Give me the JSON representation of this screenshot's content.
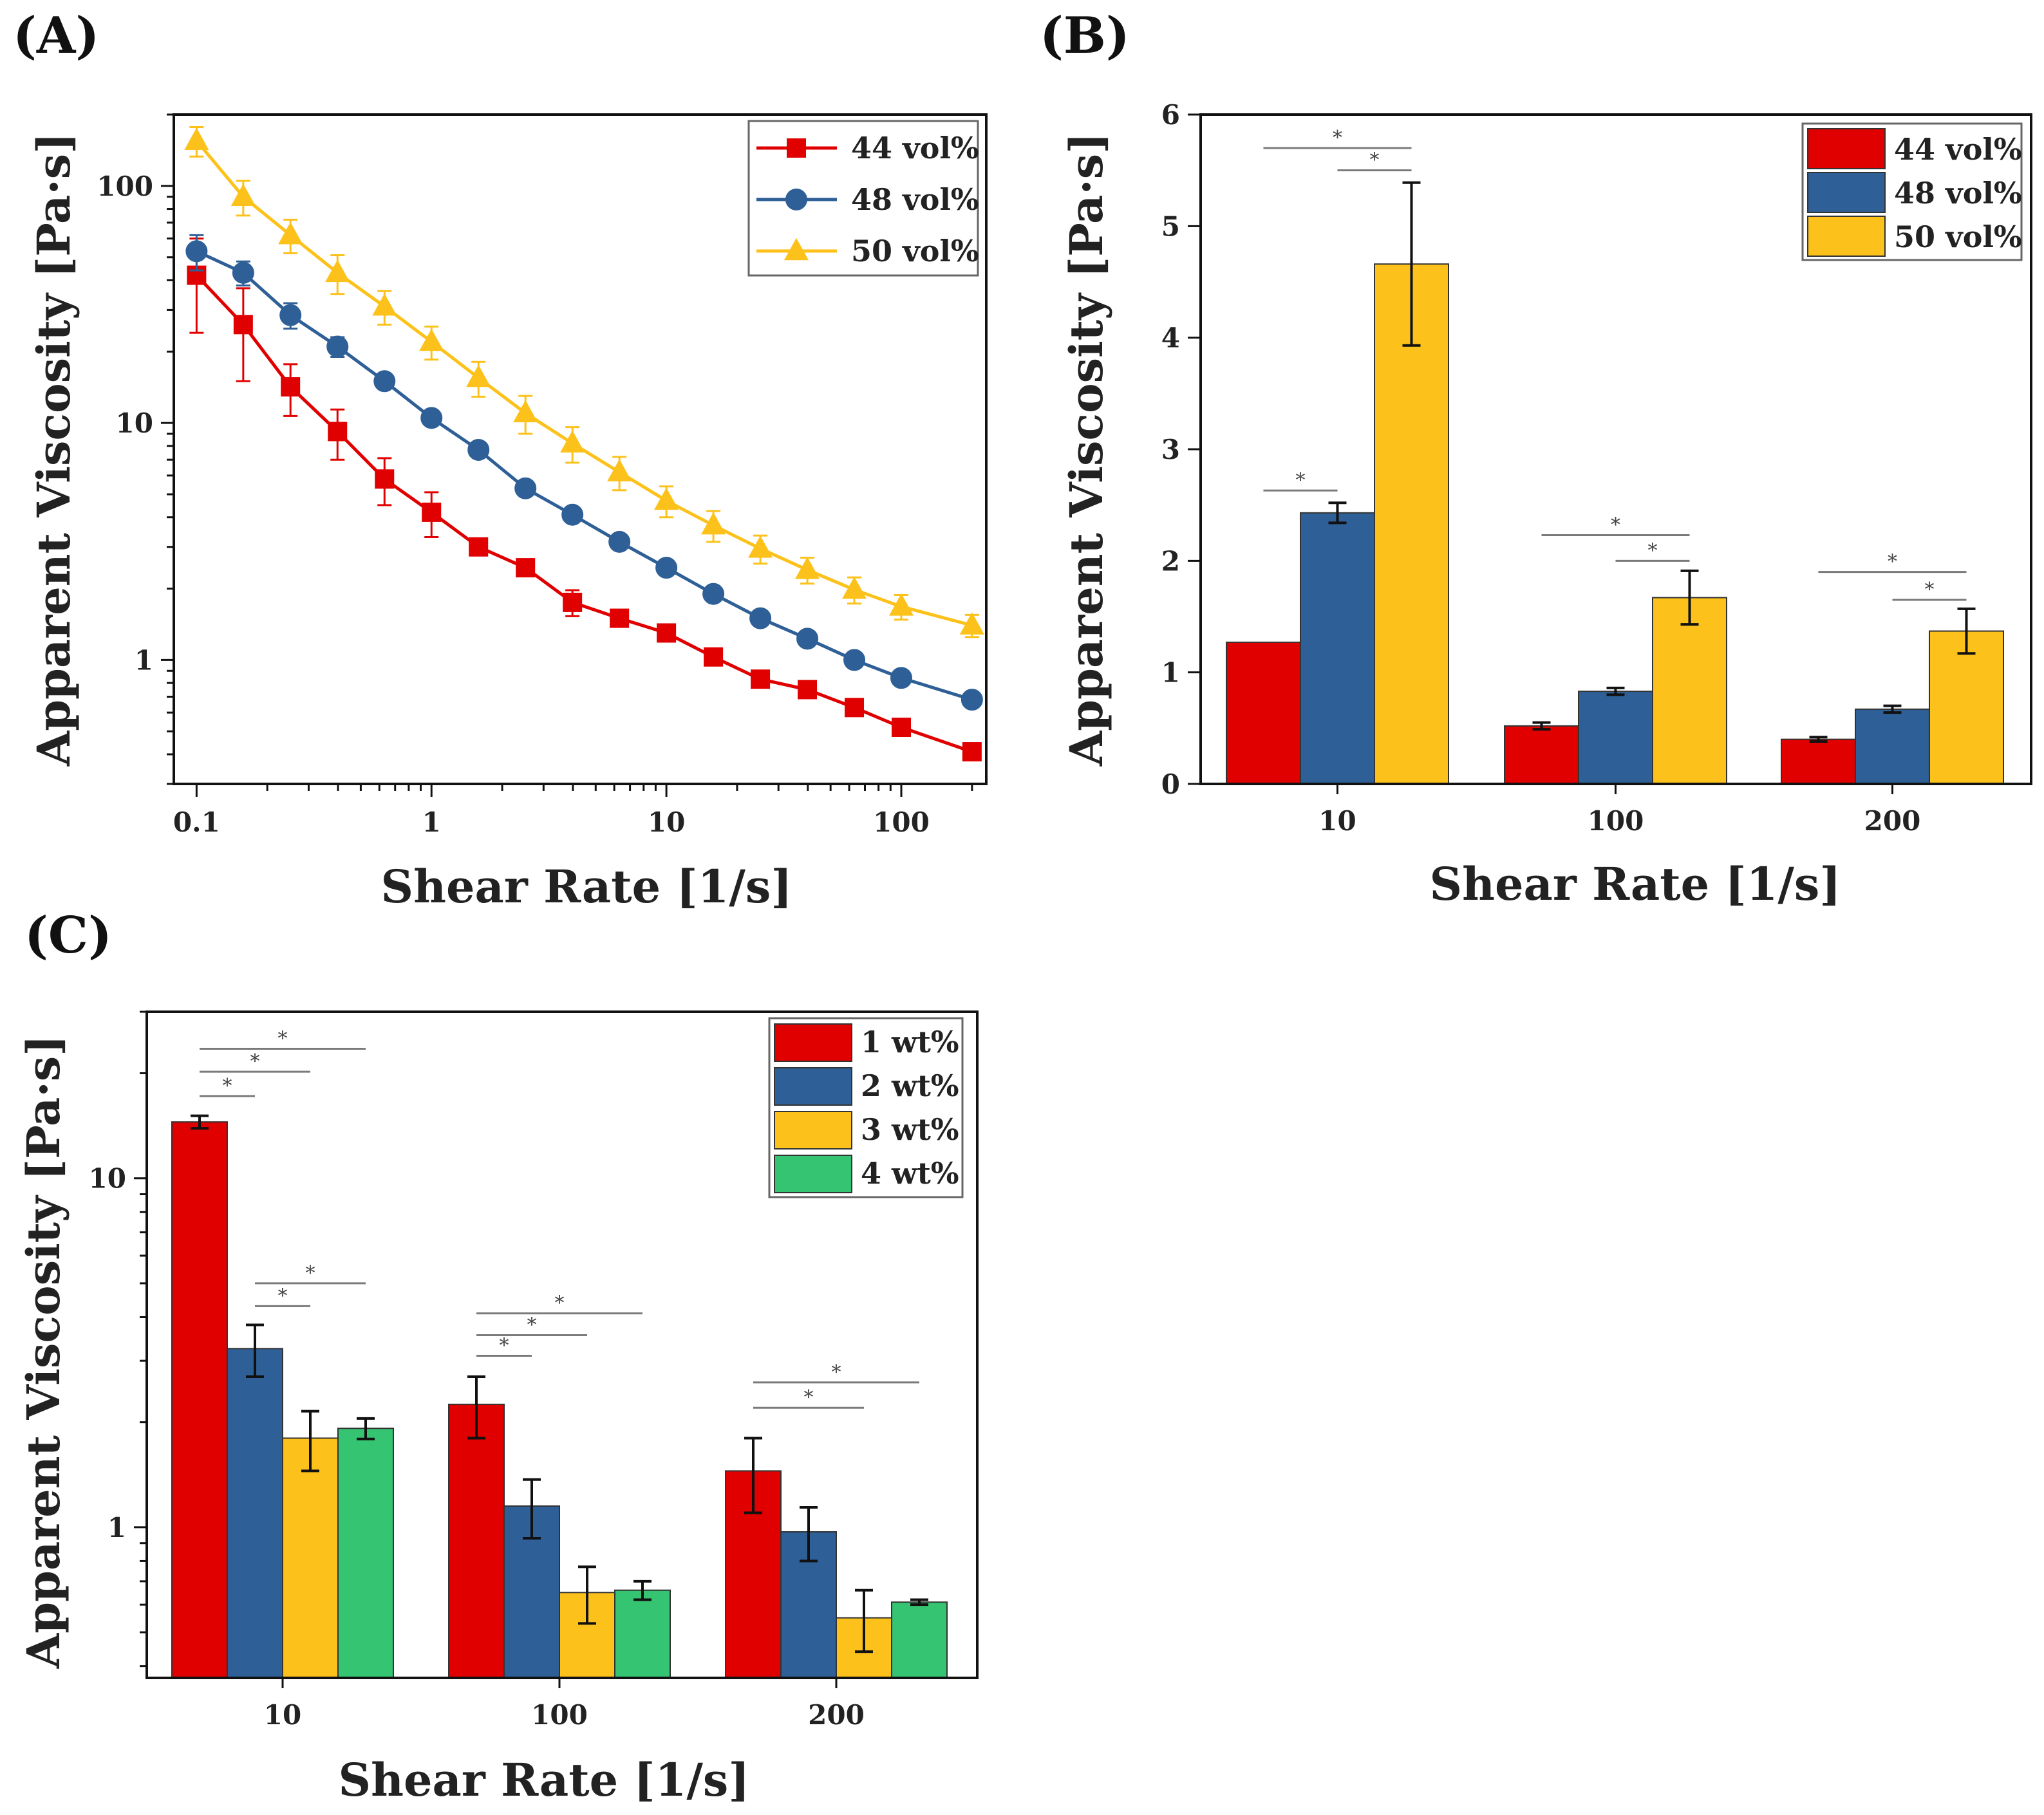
{
  "figure": {
    "panels": [
      "(A)",
      "(B)",
      "(C)"
    ]
  },
  "colors": {
    "red": "#e00000",
    "blue": "#2e5f96",
    "yellow": "#fcc21b",
    "green": "#35c472",
    "sig_line": "#7a7a7a",
    "axis": "#111111"
  },
  "chart_data": [
    {
      "panel": "(A)",
      "type": "line",
      "xscale": "log",
      "yscale": "log",
      "xlabel": "Shear Rate [1/s]",
      "ylabel": "Apparent Viscosity [Pa·s]",
      "xlim": [
        0.08,
        230
      ],
      "ylim": [
        0.3,
        200
      ],
      "xticks": [
        0.1,
        1,
        10,
        100
      ],
      "xtick_labels": [
        "0.1",
        "1",
        "10",
        "100"
      ],
      "yticks": [
        1,
        10,
        100
      ],
      "ytick_labels": [
        "1",
        "10",
        "100"
      ],
      "legend_position": "top-right",
      "x": [
        0.1,
        0.158,
        0.251,
        0.398,
        0.631,
        1,
        1.585,
        2.512,
        3.981,
        6.31,
        10,
        15.85,
        25.12,
        39.81,
        63.1,
        100,
        200
      ],
      "series": [
        {
          "name": "44 vol%",
          "color": "red",
          "marker": "square",
          "values": [
            42,
            26,
            14.2,
            9.2,
            5.8,
            4.2,
            3.0,
            2.45,
            1.75,
            1.5,
            1.3,
            1.03,
            0.83,
            0.75,
            0.63,
            0.52,
            0.41
          ],
          "err": [
            18,
            11,
            3.5,
            2.2,
            1.3,
            0.9,
            0.15,
            0.15,
            0.22,
            0.05,
            0.05,
            0.05,
            0.03,
            0.03,
            0.03,
            0.02,
            0.02
          ]
        },
        {
          "name": "48 vol%",
          "color": "blue",
          "marker": "circle",
          "values": [
            53,
            43,
            28.5,
            21,
            15,
            10.5,
            7.7,
            5.3,
            4.1,
            3.15,
            2.45,
            1.9,
            1.5,
            1.23,
            1.0,
            0.84,
            0.68
          ],
          "err": [
            9,
            5,
            3.5,
            2,
            0.8,
            0.6,
            0.3,
            0.25,
            0.15,
            0.1,
            0.08,
            0.05,
            0.05,
            0.04,
            0.03,
            0.02,
            0.02
          ]
        },
        {
          "name": "50 vol%",
          "color": "yellow",
          "marker": "triangle",
          "values": [
            155,
            90,
            62,
            43,
            31,
            22,
            15.5,
            11,
            8.2,
            6.2,
            4.7,
            3.7,
            2.95,
            2.4,
            1.98,
            1.68,
            1.4
          ],
          "err": [
            22,
            15,
            10,
            8,
            5,
            3.5,
            2.6,
            2,
            1.4,
            1,
            0.7,
            0.55,
            0.4,
            0.3,
            0.25,
            0.2,
            0.15
          ]
        }
      ]
    },
    {
      "panel": "(B)",
      "type": "bar",
      "xlabel": "Shear Rate [1/s]",
      "ylabel": "Apparent Viscosity [Pa·s]",
      "ylim": [
        0,
        6
      ],
      "yticks": [
        0,
        1,
        2,
        3,
        4,
        5,
        6
      ],
      "ytick_labels": [
        "0",
        "1",
        "2",
        "3",
        "4",
        "5",
        "6"
      ],
      "categories": [
        "10",
        "100",
        "200"
      ],
      "legend_position": "top-right",
      "series": [
        {
          "name": "44 vol%",
          "color": "red",
          "values": [
            1.27,
            0.52,
            0.4
          ],
          "err": [
            0,
            0.03,
            0.02
          ]
        },
        {
          "name": "48 vol%",
          "color": "blue",
          "values": [
            2.43,
            0.83,
            0.67
          ],
          "err": [
            0.09,
            0.03,
            0.03
          ]
        },
        {
          "name": "50 vol%",
          "color": "yellow",
          "values": [
            4.66,
            1.67,
            1.37
          ],
          "err": [
            0.73,
            0.24,
            0.2
          ]
        }
      ],
      "significance": [
        {
          "group": 0,
          "from": 0,
          "to": 1,
          "level": 2.63,
          "label": "*"
        },
        {
          "group": 0,
          "from": 0,
          "to": 2,
          "level": 5.7,
          "label": "*"
        },
        {
          "group": 0,
          "from": 1,
          "to": 2,
          "level": 5.5,
          "label": "*"
        },
        {
          "group": 1,
          "from": 0,
          "to": 2,
          "level": 2.23,
          "label": "*"
        },
        {
          "group": 1,
          "from": 1,
          "to": 2,
          "level": 2.0,
          "label": "*"
        },
        {
          "group": 2,
          "from": 0,
          "to": 2,
          "level": 1.9,
          "label": "*"
        },
        {
          "group": 2,
          "from": 1,
          "to": 2,
          "level": 1.65,
          "label": "*"
        }
      ]
    },
    {
      "panel": "(C)",
      "type": "bar",
      "yscale": "log",
      "xlabel": "Shear Rate [1/s]",
      "ylabel": "Apparent Viscosity [Pa·s]",
      "ylim": [
        0.37,
        30
      ],
      "yticks": [
        1,
        10
      ],
      "ytick_labels": [
        "1",
        "10"
      ],
      "categories": [
        "10",
        "100",
        "200"
      ],
      "legend_position": "top-right",
      "series": [
        {
          "name": "1 wt%",
          "color": "red",
          "values": [
            14.5,
            2.25,
            1.45
          ],
          "err": [
            0.6,
            0.45,
            0.35
          ]
        },
        {
          "name": "2 wt%",
          "color": "blue",
          "values": [
            3.25,
            1.15,
            0.97
          ],
          "err": [
            0.55,
            0.22,
            0.17
          ]
        },
        {
          "name": "3 wt%",
          "color": "yellow",
          "values": [
            1.8,
            0.65,
            0.55
          ],
          "err": [
            0.35,
            0.12,
            0.11
          ]
        },
        {
          "name": "4 wt%",
          "color": "green",
          "values": [
            1.92,
            0.66,
            0.61
          ],
          "err": [
            0.13,
            0.04,
            0.01
          ]
        }
      ],
      "significance": [
        {
          "group": 0,
          "from": 0,
          "to": 1,
          "level": 17.2,
          "label": "*"
        },
        {
          "group": 0,
          "from": 0,
          "to": 2,
          "level": 20.2,
          "label": "*"
        },
        {
          "group": 0,
          "from": 0,
          "to": 3,
          "level": 23.5,
          "label": "*"
        },
        {
          "group": 0,
          "from": 1,
          "to": 2,
          "level": 4.3,
          "label": "*"
        },
        {
          "group": 0,
          "from": 1,
          "to": 3,
          "level": 5.0,
          "label": "*"
        },
        {
          "group": 1,
          "from": 0,
          "to": 1,
          "level": 3.1,
          "label": "*"
        },
        {
          "group": 1,
          "from": 0,
          "to": 2,
          "level": 3.55,
          "label": "*"
        },
        {
          "group": 1,
          "from": 0,
          "to": 3,
          "level": 4.1,
          "label": "*"
        },
        {
          "group": 2,
          "from": 0,
          "to": 2,
          "level": 2.2,
          "label": "*"
        },
        {
          "group": 2,
          "from": 0,
          "to": 3,
          "level": 2.6,
          "label": "*"
        }
      ]
    }
  ]
}
